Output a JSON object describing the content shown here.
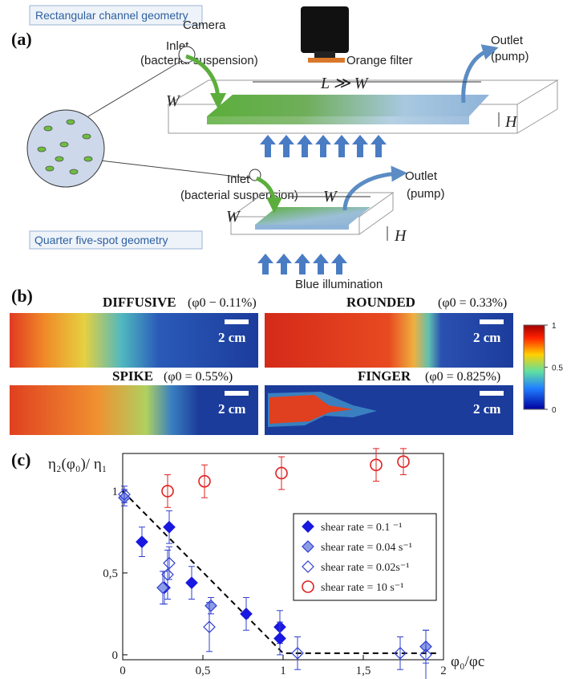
{
  "panel_a": {
    "label": "(a)",
    "rect_title": "Rectangular channel geometry",
    "five_spot_title": "Quarter five-spot geometry",
    "camera": "Camera",
    "filter": "Orange filter",
    "illumination": "Blue illumination",
    "rect_inlet": "Inlet",
    "rect_inlet_note": "(bacterial suspension)",
    "rect_outlet": "Outlet",
    "rect_outlet_note": "(pump)",
    "rect_length": "L ≫ W",
    "rect_width": "W",
    "rect_height": "H",
    "spot_inlet": "Inlet",
    "spot_inlet_note": "(bacterial suspension)",
    "spot_outlet": "Outlet",
    "spot_outlet_note": "(pump)",
    "spot_side": "W",
    "spot_width": "W",
    "spot_height": "H"
  },
  "panel_b": {
    "label": "(b)",
    "images": [
      {
        "title": "DIFFUSIVE",
        "condition": "(φ0 − 0.11%)",
        "scale": "2 cm"
      },
      {
        "title": "ROUNDED",
        "condition": "(φ0 = 0.33%)",
        "scale": "2 cm"
      },
      {
        "title": "SPIKE",
        "condition": "(φ0 = 0.55%)",
        "scale": "2 cm"
      },
      {
        "title": "FINGER",
        "condition": "(φ0 = 0.825%)",
        "scale": "2 cm"
      }
    ],
    "colorbar": {
      "ticks": [
        0,
        0.5,
        1
      ]
    }
  },
  "chart_data": {
    "type": "scatter",
    "panel_label": "(c)",
    "y_label": "η₂(φ₀)/ η₁",
    "x_label": "φ₀/φc",
    "xlim": [
      0,
      2
    ],
    "ylim": [
      -0.03,
      1.23
    ],
    "xticks": [
      0,
      {
        "value": 0.5,
        "label": "0,5"
      },
      1,
      {
        "value": 1.5,
        "label": "1,5"
      },
      2
    ],
    "yticks": [
      0,
      {
        "value": 0.5,
        "label": "0,5"
      },
      1
    ],
    "series": [
      {
        "name": "shear rate = 0.1 ⁻¹",
        "color": "#1818e0",
        "marker": "diamond-filled",
        "x": [
          0.12,
          0.26,
          0.29,
          0.43,
          0.77,
          0.98,
          0.98
        ],
        "values": [
          0.69,
          0.41,
          0.78,
          0.44,
          0.25,
          0.17,
          0.1
        ],
        "errors": [
          0.09,
          0.1,
          0.1,
          0.1,
          0.1,
          0.1,
          0.1
        ]
      },
      {
        "name": "shear rate = 0.04 s⁻¹",
        "color": "#8e9ce6",
        "marker": "diamond-light",
        "x": [
          0.01,
          0.25,
          0.55,
          1.89
        ],
        "values": [
          0.96,
          0.41,
          0.3,
          0.05
        ],
        "errors": [
          0.05,
          0.1,
          0.05,
          0.1
        ]
      },
      {
        "name": "shear rate = 0.02s⁻¹",
        "color": "#3040d0",
        "marker": "diamond-open",
        "x": [
          0.01,
          0.29,
          0.28,
          0.54,
          1.09,
          1.73,
          1.89
        ],
        "values": [
          0.98,
          0.56,
          0.49,
          0.17,
          0.01,
          0.01,
          0.0
        ],
        "errors": [
          0.05,
          0.1,
          0.15,
          0.15,
          0.1,
          0.1,
          0.15
        ]
      },
      {
        "name": "shear rate =  10 s⁻¹",
        "color": "#e02020",
        "marker": "circle-open",
        "x": [
          0.28,
          0.51,
          0.99,
          1.58,
          1.75
        ],
        "values": [
          1.0,
          1.06,
          1.11,
          1.16,
          1.18
        ],
        "errors": [
          0.1,
          0.1,
          0.1,
          0.1,
          0.08
        ]
      }
    ],
    "guide": {
      "x": [
        0,
        1,
        1.97
      ],
      "values": [
        1,
        0.01,
        0.01
      ]
    }
  }
}
